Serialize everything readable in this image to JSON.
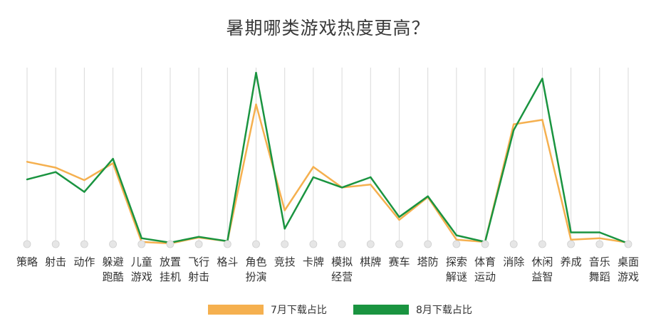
{
  "title": "暑期哪类游戏热度更高？",
  "colors": {
    "july": "#f5b04f",
    "august": "#1a9440",
    "grid": "#d9d9d9",
    "marker": "#e6e6e6"
  },
  "chart_data": {
    "type": "line",
    "title": "暑期哪类游戏热度更高？",
    "categories": [
      [
        "策略"
      ],
      [
        "射击"
      ],
      [
        "动作"
      ],
      [
        "躲避",
        "跑酷"
      ],
      [
        "儿童",
        "游戏"
      ],
      [
        "放置",
        "挂机"
      ],
      [
        "飞行",
        "射击"
      ],
      [
        "格斗"
      ],
      [
        "角色",
        "扮演"
      ],
      [
        "竞技"
      ],
      [
        "卡牌"
      ],
      [
        "模拟",
        "经营"
      ],
      [
        "棋牌"
      ],
      [
        "赛车"
      ],
      [
        "塔防"
      ],
      [
        "探索",
        "解谜"
      ],
      [
        "体育",
        "运动"
      ],
      [
        "消除"
      ],
      [
        "休闲",
        "益智"
      ],
      [
        "养成"
      ],
      [
        "音乐",
        "舞蹈"
      ],
      [
        "桌面",
        "游戏"
      ]
    ],
    "series": [
      {
        "name": "7月下载占比",
        "color": "#f5b04f",
        "values": [
          11.2,
          10.4,
          8.7,
          11.0,
          0.3,
          0.1,
          0.9,
          0.4,
          19.0,
          4.6,
          10.5,
          7.7,
          8.1,
          3.3,
          6.4,
          0.6,
          0.3,
          16.3,
          16.9,
          0.6,
          0.8,
          0.2
        ]
      },
      {
        "name": "8月下载占比",
        "color": "#1a9440",
        "values": [
          8.8,
          9.8,
          7.1,
          11.6,
          0.8,
          0.2,
          1.0,
          0.4,
          23.3,
          2.1,
          9.1,
          7.7,
          9.1,
          3.7,
          6.5,
          1.2,
          0.3,
          15.5,
          22.5,
          1.6,
          1.6,
          0.1
        ]
      }
    ],
    "ylim": [
      0,
      24
    ],
    "grid": "vertical",
    "legend_position": "bottom"
  }
}
